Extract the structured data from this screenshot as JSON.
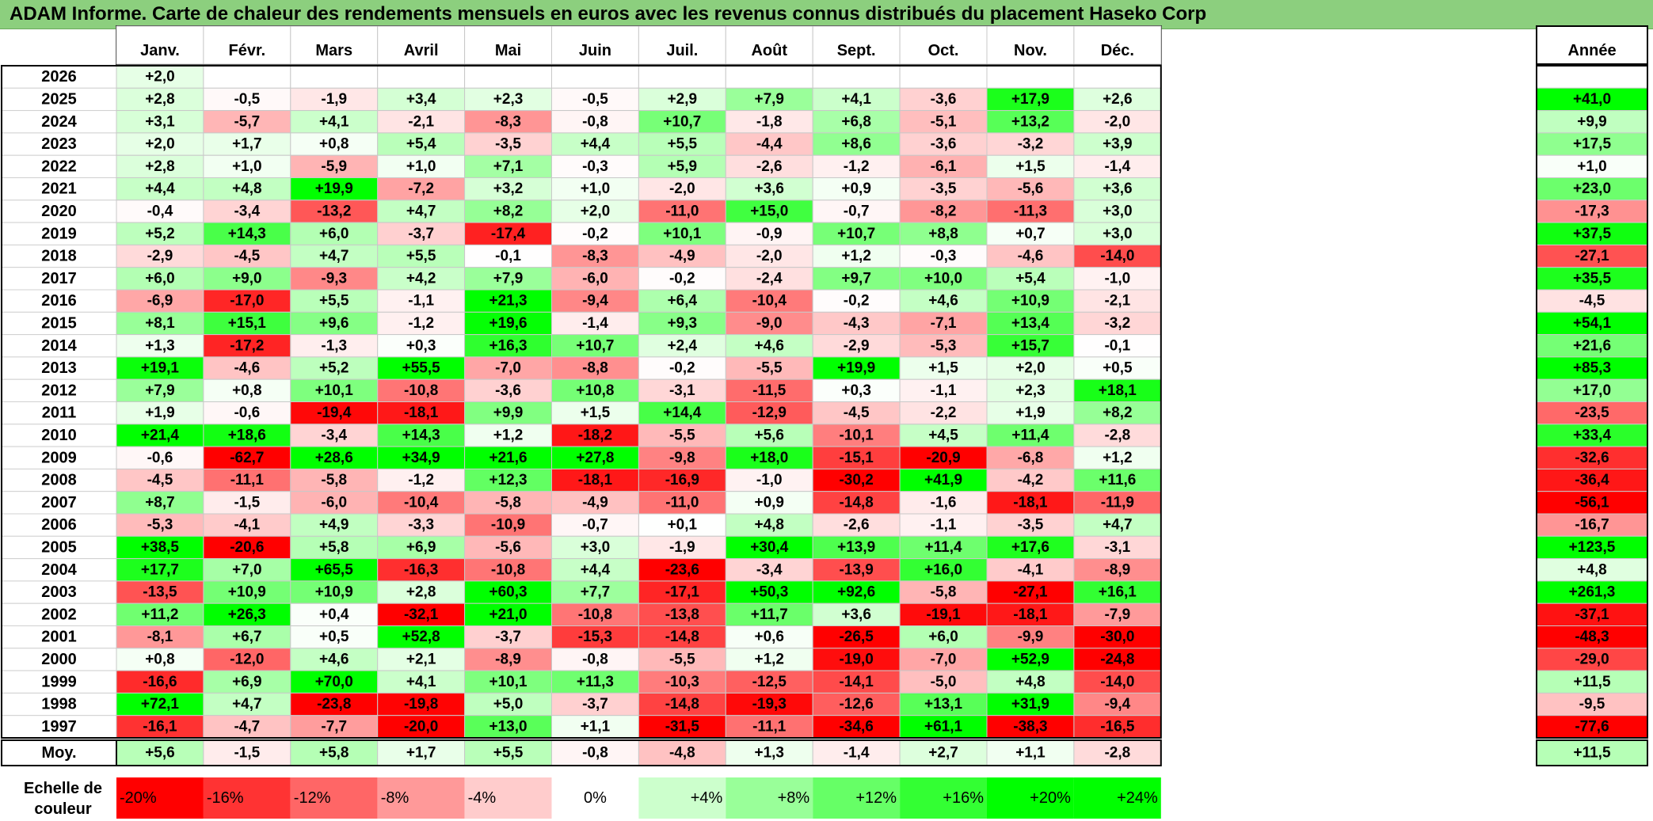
{
  "title": "ADAM Informe. Carte de chaleur des rendements mensuels en euros avec les revenus connus distribués du placement Haseko Corp",
  "year_header": "Année",
  "average_label": "Moy.",
  "scale_label_line1": "Echelle de",
  "scale_label_line2": "couleur",
  "colors": {
    "negative": "#ff0000",
    "neutral": "#ffffff",
    "positive": "#00ff00",
    "title_bg": "#8ccf7e"
  },
  "chart_data": {
    "type": "heatmap",
    "title": "ADAM Informe. Carte de chaleur des rendements mensuels en euros avec les revenus connus distribués du placement Haseko Corp",
    "columns": [
      "Janv.",
      "Févr.",
      "Mars",
      "Avril",
      "Mai",
      "Juin",
      "Juil.",
      "Août",
      "Sept.",
      "Oct.",
      "Nov.",
      "Déc."
    ],
    "rows": [
      {
        "year": "2026",
        "months": [
          "+2,0",
          "",
          "",
          "",
          "",
          "",
          "",
          "",
          "",
          "",
          "",
          ""
        ],
        "annual": ""
      },
      {
        "year": "2025",
        "months": [
          "+2,8",
          "-0,5",
          "-1,9",
          "+3,4",
          "+2,3",
          "-0,5",
          "+2,9",
          "+7,9",
          "+4,1",
          "-3,6",
          "+17,9",
          "+2,6"
        ],
        "annual": "+41,0"
      },
      {
        "year": "2024",
        "months": [
          "+3,1",
          "-5,7",
          "+4,1",
          "-2,1",
          "-8,3",
          "-0,8",
          "+10,7",
          "-1,8",
          "+6,8",
          "-5,1",
          "+13,2",
          "-2,0"
        ],
        "annual": "+9,9"
      },
      {
        "year": "2023",
        "months": [
          "+2,0",
          "+1,7",
          "+0,8",
          "+5,4",
          "-3,5",
          "+4,4",
          "+5,5",
          "-4,4",
          "+8,6",
          "-3,6",
          "-3,2",
          "+3,9"
        ],
        "annual": "+17,5"
      },
      {
        "year": "2022",
        "months": [
          "+2,8",
          "+1,0",
          "-5,9",
          "+1,0",
          "+7,1",
          "-0,3",
          "+5,9",
          "-2,6",
          "-1,2",
          "-6,1",
          "+1,5",
          "-1,4"
        ],
        "annual": "+1,0"
      },
      {
        "year": "2021",
        "months": [
          "+4,4",
          "+4,8",
          "+19,9",
          "-7,2",
          "+3,2",
          "+1,0",
          "-2,0",
          "+3,6",
          "+0,9",
          "-3,5",
          "-5,6",
          "+3,6"
        ],
        "annual": "+23,0"
      },
      {
        "year": "2020",
        "months": [
          "-0,4",
          "-3,4",
          "-13,2",
          "+4,7",
          "+8,2",
          "+2,0",
          "-11,0",
          "+15,0",
          "-0,7",
          "-8,2",
          "-11,3",
          "+3,0"
        ],
        "annual": "-17,3"
      },
      {
        "year": "2019",
        "months": [
          "+5,2",
          "+14,3",
          "+6,0",
          "-3,7",
          "-17,4",
          "-0,2",
          "+10,1",
          "-0,9",
          "+10,7",
          "+8,8",
          "+0,7",
          "+3,0"
        ],
        "annual": "+37,5"
      },
      {
        "year": "2018",
        "months": [
          "-2,9",
          "-4,5",
          "+4,7",
          "+5,5",
          "-0,1",
          "-8,3",
          "-4,9",
          "-2,0",
          "+1,2",
          "-0,3",
          "-4,6",
          "-14,0"
        ],
        "annual": "-27,1"
      },
      {
        "year": "2017",
        "months": [
          "+6,0",
          "+9,0",
          "-9,3",
          "+4,2",
          "+7,9",
          "-6,0",
          "-0,2",
          "-2,4",
          "+9,7",
          "+10,0",
          "+5,4",
          "-1,0"
        ],
        "annual": "+35,5"
      },
      {
        "year": "2016",
        "months": [
          "-6,9",
          "-17,0",
          "+5,5",
          "-1,1",
          "+21,3",
          "-9,4",
          "+6,4",
          "-10,4",
          "-0,2",
          "+4,6",
          "+10,9",
          "-2,1"
        ],
        "annual": "-4,5"
      },
      {
        "year": "2015",
        "months": [
          "+8,1",
          "+15,1",
          "+9,6",
          "-1,2",
          "+19,6",
          "-1,4",
          "+9,3",
          "-9,0",
          "-4,3",
          "-7,1",
          "+13,4",
          "-3,2"
        ],
        "annual": "+54,1"
      },
      {
        "year": "2014",
        "months": [
          "+1,3",
          "-17,2",
          "-1,3",
          "+0,3",
          "+16,3",
          "+10,7",
          "+2,4",
          "+4,6",
          "-2,9",
          "-5,3",
          "+15,7",
          "-0,1"
        ],
        "annual": "+21,6"
      },
      {
        "year": "2013",
        "months": [
          "+19,1",
          "-4,6",
          "+5,2",
          "+55,5",
          "-7,0",
          "-8,8",
          "-0,2",
          "-5,5",
          "+19,9",
          "+1,5",
          "+2,0",
          "+0,5"
        ],
        "annual": "+85,3"
      },
      {
        "year": "2012",
        "months": [
          "+7,9",
          "+0,8",
          "+10,1",
          "-10,8",
          "-3,6",
          "+10,8",
          "-3,1",
          "-11,5",
          "+0,3",
          "-1,1",
          "+2,3",
          "+18,1"
        ],
        "annual": "+17,0"
      },
      {
        "year": "2011",
        "months": [
          "+1,9",
          "-0,6",
          "-19,4",
          "-18,1",
          "+9,9",
          "+1,5",
          "+14,4",
          "-12,9",
          "-4,5",
          "-2,2",
          "+1,9",
          "+8,2"
        ],
        "annual": "-23,5"
      },
      {
        "year": "2010",
        "months": [
          "+21,4",
          "+18,6",
          "-3,4",
          "+14,3",
          "+1,2",
          "-18,2",
          "-5,5",
          "+5,6",
          "-10,1",
          "+4,5",
          "+11,4",
          "-2,8"
        ],
        "annual": "+33,4"
      },
      {
        "year": "2009",
        "months": [
          "-0,6",
          "-62,7",
          "+28,6",
          "+34,9",
          "+21,6",
          "+27,8",
          "-9,8",
          "+18,0",
          "-15,1",
          "-20,9",
          "-6,8",
          "+1,2"
        ],
        "annual": "-32,6"
      },
      {
        "year": "2008",
        "months": [
          "-4,5",
          "-11,1",
          "-5,8",
          "-1,2",
          "+12,3",
          "-18,1",
          "-16,9",
          "-1,0",
          "-30,2",
          "+41,9",
          "-4,2",
          "+11,6"
        ],
        "annual": "-36,4"
      },
      {
        "year": "2007",
        "months": [
          "+8,7",
          "-1,5",
          "-6,0",
          "-10,4",
          "-5,8",
          "-4,9",
          "-11,0",
          "+0,9",
          "-14,8",
          "-1,6",
          "-18,1",
          "-11,9"
        ],
        "annual": "-56,1"
      },
      {
        "year": "2006",
        "months": [
          "-5,3",
          "-4,1",
          "+4,9",
          "-3,3",
          "-10,9",
          "-0,7",
          "+0,1",
          "+4,8",
          "-2,6",
          "-1,1",
          "-3,5",
          "+4,7"
        ],
        "annual": "-16,7"
      },
      {
        "year": "2005",
        "months": [
          "+38,5",
          "-20,6",
          "+5,8",
          "+6,9",
          "-5,6",
          "+3,0",
          "-1,9",
          "+30,4",
          "+13,9",
          "+11,4",
          "+17,6",
          "-3,1"
        ],
        "annual": "+123,5"
      },
      {
        "year": "2004",
        "months": [
          "+17,7",
          "+7,0",
          "+65,5",
          "-16,3",
          "-10,8",
          "+4,4",
          "-23,6",
          "-3,4",
          "-13,9",
          "+16,0",
          "-4,1",
          "-8,9"
        ],
        "annual": "+4,8"
      },
      {
        "year": "2003",
        "months": [
          "-13,5",
          "+10,9",
          "+10,9",
          "+2,8",
          "+60,3",
          "+7,7",
          "-17,1",
          "+50,3",
          "+92,6",
          "-5,8",
          "-27,1",
          "+16,1"
        ],
        "annual": "+261,3"
      },
      {
        "year": "2002",
        "months": [
          "+11,2",
          "+26,3",
          "+0,4",
          "-32,1",
          "+21,0",
          "-10,8",
          "-13,8",
          "+11,7",
          "+3,6",
          "-19,1",
          "-18,1",
          "-7,9"
        ],
        "annual": "-37,1"
      },
      {
        "year": "2001",
        "months": [
          "-8,1",
          "+6,7",
          "+0,5",
          "+52,8",
          "-3,7",
          "-15,3",
          "-14,8",
          "+0,6",
          "-26,5",
          "+6,0",
          "-9,9",
          "-30,0"
        ],
        "annual": "-48,3"
      },
      {
        "year": "2000",
        "months": [
          "+0,8",
          "-12,0",
          "+4,6",
          "+2,1",
          "-8,9",
          "-0,8",
          "-5,5",
          "+1,2",
          "-19,0",
          "-7,0",
          "+52,9",
          "-24,8"
        ],
        "annual": "-29,0"
      },
      {
        "year": "1999",
        "months": [
          "-16,6",
          "+6,9",
          "+70,0",
          "+4,1",
          "+10,1",
          "+11,3",
          "-10,3",
          "-12,5",
          "-14,1",
          "-5,0",
          "+4,8",
          "-14,0"
        ],
        "annual": "+11,5"
      },
      {
        "year": "1998",
        "months": [
          "+72,1",
          "+4,7",
          "-23,8",
          "-19,8",
          "+5,0",
          "-3,7",
          "-14,8",
          "-19,3",
          "-12,6",
          "+13,1",
          "+31,9",
          "-9,4"
        ],
        "annual": "-9,5"
      },
      {
        "year": "1997",
        "months": [
          "-16,1",
          "-4,7",
          "-7,7",
          "-20,0",
          "+13,0",
          "+1,1",
          "-31,5",
          "-11,1",
          "-34,6",
          "+61,1",
          "-38,3",
          "-16,5"
        ],
        "annual": "-77,6"
      }
    ],
    "average": {
      "months": [
        "+5,6",
        "-1,5",
        "+5,8",
        "+1,7",
        "+5,5",
        "-0,8",
        "-4,8",
        "+1,3",
        "-1,4",
        "+2,7",
        "+1,1",
        "-2,8"
      ],
      "annual": "+11,5"
    },
    "scale": {
      "labels": [
        "-20%",
        "-16%",
        "-12%",
        "-8%",
        "-4%",
        "0%",
        "+4%",
        "+8%",
        "+12%",
        "+16%",
        "+20%",
        "+24%"
      ],
      "values": [
        -20,
        -16,
        -12,
        -8,
        -4,
        0,
        4,
        8,
        12,
        16,
        20,
        24
      ]
    }
  }
}
